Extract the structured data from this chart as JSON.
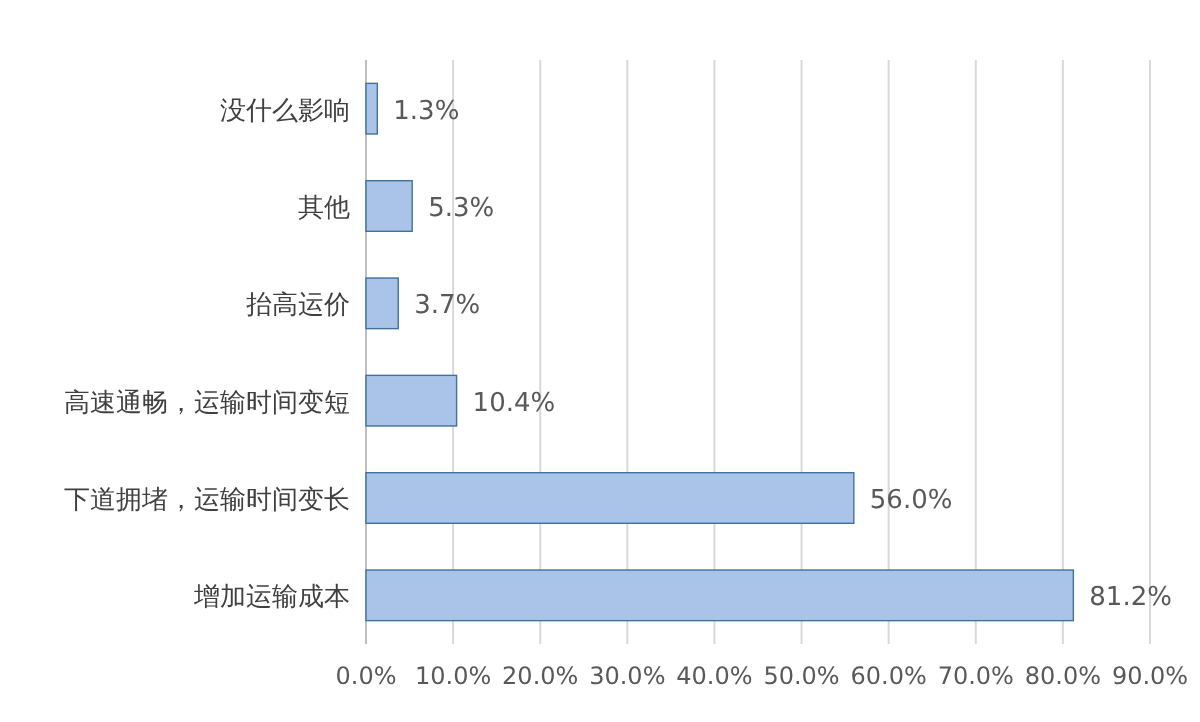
{
  "chart_data": {
    "type": "bar",
    "orientation": "horizontal",
    "categories": [
      "没什么影响",
      "其他",
      "抬高运价",
      "高速通畅，运输时间变短",
      "下道拥堵，运输时间变长",
      "增加运输成本"
    ],
    "values": [
      1.3,
      5.3,
      3.7,
      10.4,
      56.0,
      81.2
    ],
    "value_labels": [
      "1.3%",
      "5.3%",
      "3.7%",
      "10.4%",
      "56.0%",
      "81.2%"
    ],
    "color": "#a9c4e8",
    "xlim": [
      0,
      90
    ],
    "xticks": [
      {
        "value": 0,
        "label": "0.0%"
      },
      {
        "value": 10,
        "label": "10.0%"
      },
      {
        "value": 20,
        "label": "20.0%"
      },
      {
        "value": 30,
        "label": "30.0%"
      },
      {
        "value": 40,
        "label": "40.0%"
      },
      {
        "value": 50,
        "label": "50.0%"
      },
      {
        "value": 60,
        "label": "60.0%"
      },
      {
        "value": 70,
        "label": "70.0%"
      },
      {
        "value": 80,
        "label": "80.0%"
      },
      {
        "value": 90,
        "label": "90.0%"
      }
    ],
    "grid": "x"
  }
}
